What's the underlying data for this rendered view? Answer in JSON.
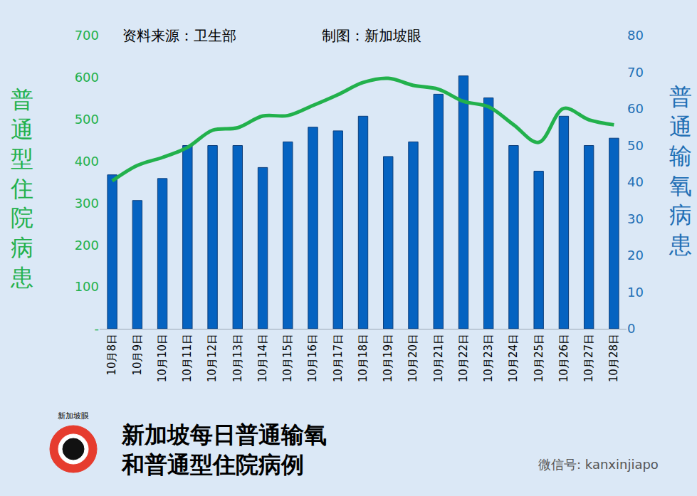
{
  "chart_data": {
    "type": "bar",
    "title": "新加坡每日普通输氧\n和普通型住院病例",
    "annotations": [
      "资料来源：卫生部",
      "制图：新加坡眼",
      "新加坡眼",
      "微信号: kanxinjiapo"
    ],
    "ylabel": "普通型住院病患",
    "y2label": "普通输氧病患",
    "categories": [
      "10月8日",
      "10月9日",
      "10月10日",
      "10月11日",
      "10月12日",
      "10月13日",
      "10月14日",
      "10月15日",
      "10月16日",
      "10月17日",
      "10月18日",
      "10月19日",
      "10月20日",
      "10月21日",
      "10月22日",
      "10月23日",
      "10月24日",
      "10月25日",
      "10月26日",
      "10月27日",
      "10月28日"
    ],
    "series": [
      {
        "name": "普通输氧病患",
        "type": "bar",
        "axis": "y2",
        "color": "#0563c1",
        "values": [
          42,
          35,
          41,
          50,
          50,
          50,
          44,
          51,
          55,
          54,
          58,
          47,
          51,
          64,
          69,
          63,
          50,
          43,
          58,
          50,
          52
        ]
      },
      {
        "name": "普通型住院病患",
        "type": "line",
        "axis": "y",
        "color": "#22b14c",
        "line_style": "smooth",
        "values": [
          353,
          390,
          409,
          433,
          474,
          480,
          508,
          509,
          533,
          559,
          588,
          598,
          581,
          572,
          543,
          530,
          487,
          445,
          526,
          499,
          487
        ]
      }
    ],
    "ylim": [
      0,
      700
    ],
    "yticks": [
      {
        "value": 0,
        "label": "-"
      },
      100,
      200,
      300,
      400,
      500,
      600,
      700
    ],
    "y2lim": [
      0,
      80
    ],
    "y2ticks": [
      0,
      10,
      20,
      30,
      40,
      50,
      60,
      70,
      80
    ],
    "grid": false
  }
}
